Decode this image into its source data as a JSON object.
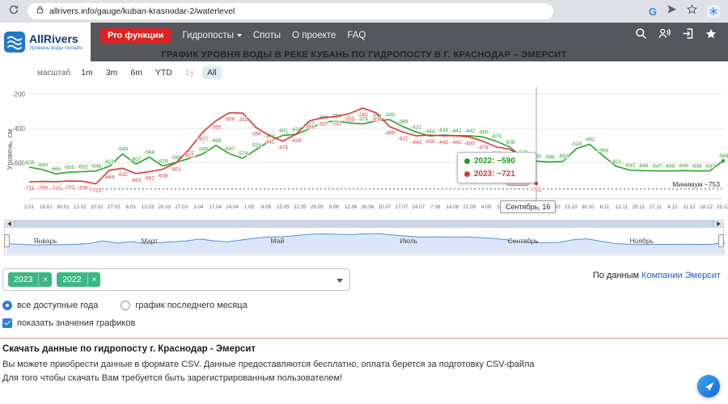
{
  "browser": {
    "url": "allrivers.info/gauge/kuban-krasnodar-2/waterlevel",
    "google_label": "G"
  },
  "navbar": {
    "logo_title": "AllRivers",
    "logo_subtitle": "Уровень воды онлайн",
    "pro_button": "Pro функции",
    "menu": [
      {
        "label": "Гидропосты",
        "caret": true
      },
      {
        "label": "Споты"
      },
      {
        "label": "О проекте"
      },
      {
        "label": "FAQ"
      }
    ]
  },
  "page": {
    "title": "ГРАФИК УРОВНЯ ВОДЫ В РЕКЕ КУБАНЬ ПО ГИДРОПОСТУ В Г. КРАСНОДАР – ЭМЕРСИТ"
  },
  "range_selector": {
    "label": "масштаб",
    "buttons": [
      {
        "label": "1m"
      },
      {
        "label": "3m"
      },
      {
        "label": "6m"
      },
      {
        "label": "YTD"
      },
      {
        "label": "1y",
        "disabled": true
      },
      {
        "label": "All",
        "selected": true
      }
    ]
  },
  "chart_data": {
    "type": "line",
    "ylabel": "Уровень, см",
    "yticks": [
      -200,
      -400,
      -600
    ],
    "ylim": [
      -810,
      -160
    ],
    "grid": true,
    "x_tick_labels": [
      "2.01",
      "16.01",
      "30.01",
      "13.02",
      "20.02",
      "27.02",
      "6.03",
      "13.03",
      "20.03",
      "27.03",
      "3.04",
      "17.04",
      "24.04",
      "1.05",
      "8.05",
      "15.05",
      "22.05",
      "29.05",
      "5.06",
      "12.06",
      "26.06",
      "10.07",
      "17.07",
      "24.07",
      "7.08",
      "14.08",
      "21.08",
      "4.09",
      "18.09",
      "25.09",
      "9.10",
      "16.10",
      "23.10",
      "30.10",
      "6.11",
      "13.11",
      "20.11",
      "27.11",
      "4.12",
      "11.12",
      "18.12",
      "25.12"
    ],
    "minimum": {
      "value": -753,
      "label": "Минимум −753"
    },
    "crosshair_date": "Сентябрь, 16",
    "tooltip": {
      "items": [
        {
          "name": "2022",
          "value": -590,
          "color": "#1e9b1e"
        },
        {
          "name": "2023",
          "value": -721,
          "color": "#e03535"
        }
      ]
    },
    "flag": {
      "label": "-719",
      "color": "#e03535"
    },
    "series": [
      {
        "name": "2022",
        "color": "#2aa12a",
        "values": [
          -626,
          -640,
          -665,
          -655,
          -652,
          -648,
          -621,
          -549,
          -607,
          -568,
          -619,
          -598,
          -575,
          -549,
          -498,
          -547,
          -574,
          -524,
          -474,
          -441,
          -434,
          -402,
          -366,
          -356,
          -368,
          -374,
          -356,
          -349,
          -389,
          -421,
          -444,
          -439,
          -442,
          -442,
          -450,
          -474,
          -508,
          -570,
          -590,
          -596,
          -592,
          -518,
          -492,
          -559,
          -621,
          -643,
          -646,
          -647,
          -648,
          -646,
          -648,
          -647,
          -589
        ]
      },
      {
        "name": "2023",
        "color": "#e03535",
        "values": [
          -711,
          -709,
          -710,
          -707,
          -708,
          -723,
          -644,
          -632,
          -663,
          -652,
          -638,
          -601,
          -521,
          -422,
          -355,
          -309,
          -311,
          -394,
          -441,
          -474,
          -434,
          -356,
          -337,
          -331,
          -313,
          -282,
          -309,
          -389,
          -421,
          -443,
          -439,
          -442,
          -442,
          -450,
          -474,
          -508,
          -521,
          -570,
          -721
        ]
      }
    ],
    "navigator": {
      "months": [
        "Январь",
        "Март",
        "Май",
        "Июль",
        "Сентябрь",
        "Ноябрь"
      ],
      "color": "#5b8ed6"
    }
  },
  "filters": {
    "chips": [
      {
        "label": "2023",
        "remove": "×"
      },
      {
        "label": "2022",
        "remove": "×"
      }
    ],
    "attribution": {
      "prefix": "По данным",
      "link": "Компании Эмерсит"
    },
    "radios": [
      {
        "label": "все доступные года",
        "selected": true
      },
      {
        "label": "график последнего месяца",
        "selected": false
      }
    ],
    "checkbox": {
      "label": "показать значения графиков",
      "checked": true
    }
  },
  "footer": {
    "heading": "Скачать данные по гидропосту г. Краснодар - Эмерсит",
    "line1": "Вы можете приобрести данные в формате CSV. Данные предоставляются бесплатно, оплата берется за подготовку CSV-файла",
    "line2": "Для того чтобы скачать Вам требуется быть зарегистрированным пользователем!"
  }
}
